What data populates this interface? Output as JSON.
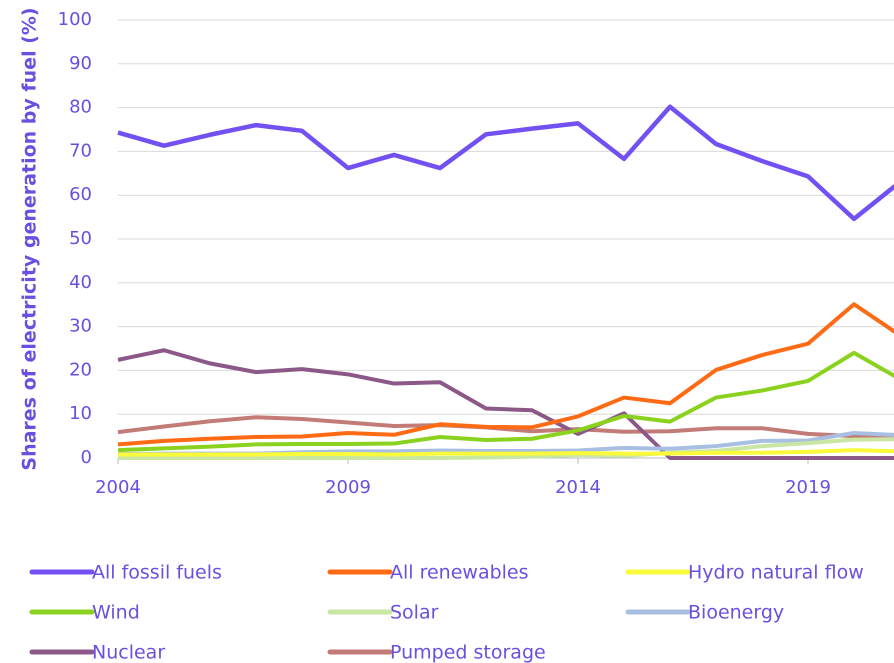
{
  "chart_data": {
    "type": "line",
    "y_label": "Shares of electricity generation by fuel (%)",
    "x": [
      2004,
      2005,
      2006,
      2007,
      2008,
      2009,
      2010,
      2011,
      2012,
      2013,
      2014,
      2015,
      2016,
      2017,
      2018,
      2019,
      2020,
      2021
    ],
    "xlim": [
      2004,
      2021
    ],
    "xticks": [
      2004,
      2009,
      2014,
      2019
    ],
    "ylim": [
      0,
      100
    ],
    "yticks": [
      0,
      10,
      20,
      30,
      40,
      50,
      60,
      70,
      80,
      90,
      100
    ],
    "grid": true,
    "series": [
      {
        "name": "All fossil fuels",
        "color": "#7350f2",
        "values": [
          74.3,
          71.3,
          73.8,
          76,
          74.7,
          66.2,
          69.2,
          66.2,
          73.9,
          75.2,
          76.4,
          68.3,
          80.2,
          71.7,
          67.8,
          64.3,
          54.6,
          63
        ]
      },
      {
        "name": "All renewables",
        "color": "#ff6a14",
        "values": [
          3.1,
          3.9,
          4.4,
          4.8,
          4.9,
          5.7,
          5.3,
          7.7,
          7.1,
          7,
          9.5,
          13.8,
          12.5,
          20.1,
          23.5,
          26.1,
          35.1,
          28
        ]
      },
      {
        "name": "Hydro natural flow",
        "color": "#fafa3c",
        "values": [
          0.8,
          0.8,
          0.8,
          0.8,
          0.9,
          0.9,
          0.8,
          1,
          1,
          1,
          1.1,
          1,
          1,
          1.2,
          1.2,
          1.4,
          1.8,
          1.5
        ]
      },
      {
        "name": "Wind",
        "color": "#8ad21e",
        "values": [
          1.8,
          2.2,
          2.6,
          3.1,
          3.2,
          3.2,
          3.3,
          4.8,
          4.1,
          4.4,
          6.3,
          9.6,
          8.3,
          13.8,
          15.4,
          17.6,
          24,
          18
        ]
      },
      {
        "name": "Solar",
        "color": "#c9e6a3",
        "values": [
          0,
          0,
          0,
          0,
          0,
          0,
          0,
          0,
          0.1,
          0.3,
          0.7,
          0.5,
          1.2,
          1.6,
          2.7,
          3.4,
          4.2,
          4.3
        ]
      },
      {
        "name": "Bioenergy",
        "color": "#a8bfe2",
        "values": [
          0.9,
          1,
          1,
          1,
          1.3,
          1.5,
          1.5,
          1.7,
          1.6,
          1.6,
          1.7,
          2.3,
          2.1,
          2.7,
          3.9,
          4,
          5.7,
          5.2
        ]
      },
      {
        "name": "Nuclear",
        "color": "#8c5888",
        "values": [
          22.4,
          24.6,
          21.6,
          19.6,
          20.3,
          19.1,
          17,
          17.3,
          11.3,
          10.9,
          5.5,
          10.2,
          0,
          0,
          0,
          0,
          0,
          0
        ]
      },
      {
        "name": "Pumped storage",
        "color": "#c27b76",
        "values": [
          5.9,
          7.2,
          8.4,
          9.3,
          8.9,
          8.1,
          7.3,
          7.5,
          7,
          6.1,
          6.6,
          6,
          6.1,
          6.8,
          6.8,
          5.5,
          5,
          4.8
        ]
      }
    ]
  }
}
